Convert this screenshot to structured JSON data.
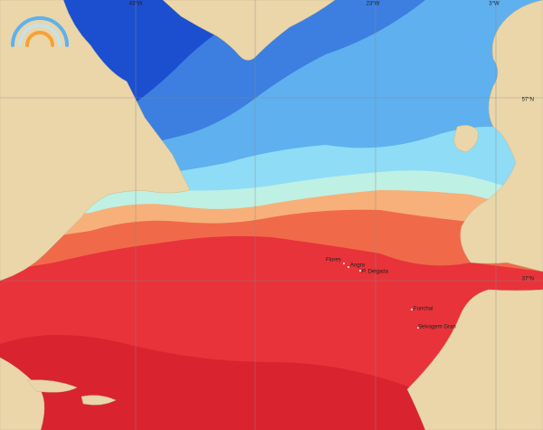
{
  "map": {
    "grid_labels": [
      "43°W",
      "23°W",
      "3°W",
      "57°N",
      "37°N"
    ],
    "places": [
      "Flores",
      "Angra",
      "P. Delgada",
      "Funchal",
      "Selvagem Gran"
    ]
  }
}
